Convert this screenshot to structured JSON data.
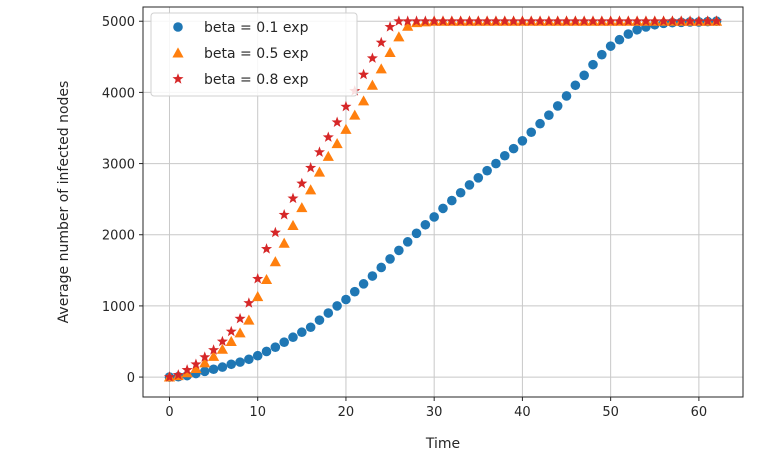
{
  "chart_data": {
    "type": "scatter",
    "xlabel": "Time",
    "ylabel": "Average number of infected nodes",
    "xlim": [
      -3,
      65
    ],
    "ylim": [
      -280,
      5200
    ],
    "xticks": [
      0,
      10,
      20,
      30,
      40,
      50,
      60
    ],
    "yticks": [
      0,
      1000,
      2000,
      3000,
      4000,
      5000
    ],
    "grid": true,
    "legend_position": "top-left",
    "series": [
      {
        "name": "beta = 0.1 exp",
        "marker": "circle",
        "color": "#1f77b4",
        "x": [
          0,
          1,
          2,
          3,
          4,
          5,
          6,
          7,
          8,
          9,
          10,
          11,
          12,
          13,
          14,
          15,
          16,
          17,
          18,
          19,
          20,
          21,
          22,
          23,
          24,
          25,
          26,
          27,
          28,
          29,
          30,
          31,
          32,
          33,
          34,
          35,
          36,
          37,
          38,
          39,
          40,
          41,
          42,
          43,
          44,
          45,
          46,
          47,
          48,
          49,
          50,
          51,
          52,
          53,
          54,
          55,
          56,
          57,
          58,
          59,
          60,
          61,
          62
        ],
        "y": [
          0,
          5,
          20,
          50,
          80,
          110,
          140,
          180,
          210,
          250,
          300,
          360,
          420,
          490,
          560,
          630,
          700,
          800,
          900,
          1000,
          1090,
          1200,
          1310,
          1420,
          1540,
          1660,
          1780,
          1900,
          2020,
          2140,
          2250,
          2370,
          2480,
          2590,
          2700,
          2800,
          2900,
          3000,
          3110,
          3210,
          3320,
          3440,
          3560,
          3680,
          3810,
          3950,
          4100,
          4240,
          4390,
          4530,
          4650,
          4740,
          4820,
          4880,
          4920,
          4950,
          4970,
          4980,
          4985,
          4990,
          4990,
          4995,
          5000
        ]
      },
      {
        "name": "beta = 0.5 exp",
        "marker": "triangle",
        "color": "#ff7f0e",
        "x": [
          0,
          1,
          2,
          3,
          4,
          5,
          6,
          7,
          8,
          9,
          10,
          11,
          12,
          13,
          14,
          15,
          16,
          17,
          18,
          19,
          20,
          21,
          22,
          23,
          24,
          25,
          26,
          27,
          28,
          29,
          30,
          31,
          32,
          33,
          34,
          35,
          36,
          37,
          38,
          39,
          40,
          41,
          42,
          43,
          44,
          45,
          46,
          47,
          48,
          49,
          50,
          51,
          52,
          53,
          54,
          55,
          56,
          57,
          58,
          59,
          60,
          61,
          62
        ],
        "y": [
          0,
          20,
          60,
          120,
          200,
          290,
          390,
          500,
          620,
          800,
          1130,
          1370,
          1620,
          1880,
          2130,
          2380,
          2630,
          2880,
          3100,
          3280,
          3480,
          3680,
          3880,
          4100,
          4330,
          4560,
          4780,
          4930,
          4980,
          4990,
          5000,
          5000,
          5000,
          5000,
          5000,
          5000,
          5000,
          5000,
          5000,
          5000,
          5000,
          5000,
          5000,
          5000,
          5000,
          5000,
          5000,
          5000,
          5000,
          5000,
          5000,
          5000,
          5000,
          5000,
          5000,
          5000,
          5000,
          5000,
          5000,
          5000,
          5000,
          5000,
          5000
        ]
      },
      {
        "name": "beta = 0.8 exp",
        "marker": "star",
        "color": "#d62728",
        "x": [
          0,
          1,
          2,
          3,
          4,
          5,
          6,
          7,
          8,
          9,
          10,
          11,
          12,
          13,
          14,
          15,
          16,
          17,
          18,
          19,
          20,
          21,
          22,
          23,
          24,
          25,
          26,
          27,
          28,
          29,
          30,
          31,
          32,
          33,
          34,
          35,
          36,
          37,
          38,
          39,
          40,
          41,
          42,
          43,
          44,
          45,
          46,
          47,
          48,
          49,
          50,
          51,
          52,
          53,
          54,
          55,
          56,
          57,
          58,
          59,
          60,
          61,
          62
        ],
        "y": [
          0,
          30,
          100,
          180,
          280,
          380,
          500,
          640,
          820,
          1040,
          1380,
          1800,
          2030,
          2280,
          2510,
          2720,
          2940,
          3160,
          3370,
          3580,
          3800,
          4020,
          4250,
          4480,
          4700,
          4920,
          5000,
          5000,
          5000,
          5000,
          5000,
          5000,
          5000,
          5000,
          5000,
          5000,
          5000,
          5000,
          5000,
          5000,
          5000,
          5000,
          5000,
          5000,
          5000,
          5000,
          5000,
          5000,
          5000,
          5000,
          5000,
          5000,
          5000,
          5000,
          5000,
          5000,
          5000,
          5000,
          5000,
          5000,
          5000,
          5000,
          5000
        ]
      }
    ]
  }
}
